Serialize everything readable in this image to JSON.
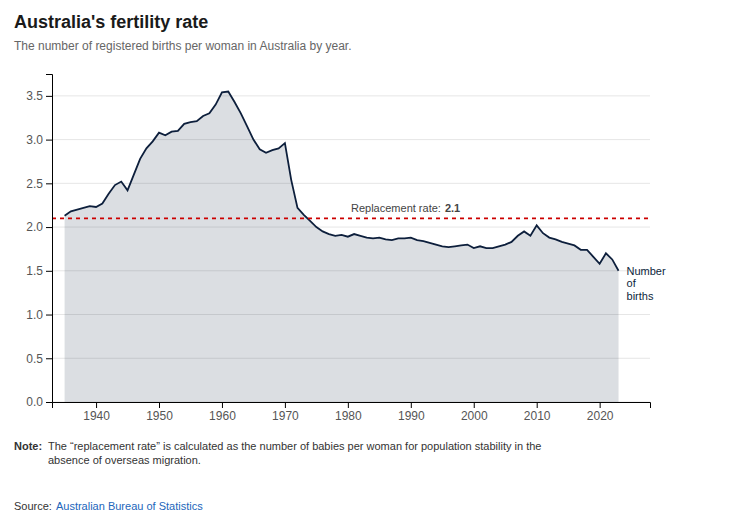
{
  "chart_data": {
    "type": "area",
    "title": "Australia's fertility rate",
    "subtitle": "The number of registered births per woman in Australia by year.",
    "note_label": "Note:",
    "note": "The “replacement rate” is calculated as the number of babies per woman for population stability in the\nabsence of overseas migration.",
    "source_label": "Source:",
    "source": "Australian Bureau of Statistics",
    "reference_line": {
      "label": "Replacement rate:",
      "value": 2.1,
      "color": "#cc0000"
    },
    "x": [
      1935,
      1936,
      1937,
      1938,
      1939,
      1940,
      1941,
      1942,
      1943,
      1944,
      1945,
      1946,
      1947,
      1948,
      1949,
      1950,
      1951,
      1952,
      1953,
      1954,
      1955,
      1956,
      1957,
      1958,
      1959,
      1960,
      1961,
      1962,
      1963,
      1964,
      1965,
      1966,
      1967,
      1968,
      1969,
      1970,
      1971,
      1972,
      1973,
      1974,
      1975,
      1976,
      1977,
      1978,
      1979,
      1980,
      1981,
      1982,
      1983,
      1984,
      1985,
      1986,
      1987,
      1988,
      1989,
      1990,
      1991,
      1992,
      1993,
      1994,
      1995,
      1996,
      1997,
      1998,
      1999,
      2000,
      2001,
      2002,
      2003,
      2004,
      2005,
      2006,
      2007,
      2008,
      2009,
      2010,
      2011,
      2012,
      2013,
      2014,
      2015,
      2016,
      2017,
      2018,
      2019,
      2020,
      2021,
      2022,
      2023
    ],
    "series": [
      {
        "name": "Number\nof\nbirths",
        "color": "#0d1f3c",
        "values": [
          2.13,
          2.18,
          2.2,
          2.22,
          2.24,
          2.23,
          2.27,
          2.38,
          2.48,
          2.52,
          2.42,
          2.6,
          2.78,
          2.9,
          2.98,
          3.08,
          3.05,
          3.09,
          3.1,
          3.18,
          3.2,
          3.21,
          3.27,
          3.3,
          3.4,
          3.54,
          3.55,
          3.43,
          3.3,
          3.15,
          3.0,
          2.89,
          2.85,
          2.88,
          2.9,
          2.96,
          2.54,
          2.22,
          2.14,
          2.07,
          2.0,
          1.95,
          1.92,
          1.9,
          1.91,
          1.89,
          1.92,
          1.9,
          1.88,
          1.87,
          1.88,
          1.86,
          1.85,
          1.87,
          1.87,
          1.88,
          1.85,
          1.84,
          1.82,
          1.8,
          1.78,
          1.77,
          1.78,
          1.79,
          1.8,
          1.76,
          1.78,
          1.76,
          1.76,
          1.78,
          1.8,
          1.83,
          1.9,
          1.95,
          1.9,
          2.02,
          1.93,
          1.88,
          1.86,
          1.83,
          1.81,
          1.79,
          1.74,
          1.74,
          1.66,
          1.58,
          1.7,
          1.63,
          1.5
        ]
      }
    ],
    "xlim": [
      1933,
      2028
    ],
    "xticks": [
      1940,
      1950,
      1960,
      1970,
      1980,
      1990,
      2000,
      2010,
      2020
    ],
    "ylim": [
      0.0,
      3.75
    ],
    "yticks": [
      {
        "value": 0.0,
        "label": "0.0"
      },
      0.5,
      {
        "value": 1.0,
        "label": "1.0"
      },
      1.5,
      {
        "value": 2.0,
        "label": "2.0"
      },
      2.5,
      {
        "value": 3.0,
        "label": "3.0"
      },
      3.5
    ],
    "grid": true
  }
}
